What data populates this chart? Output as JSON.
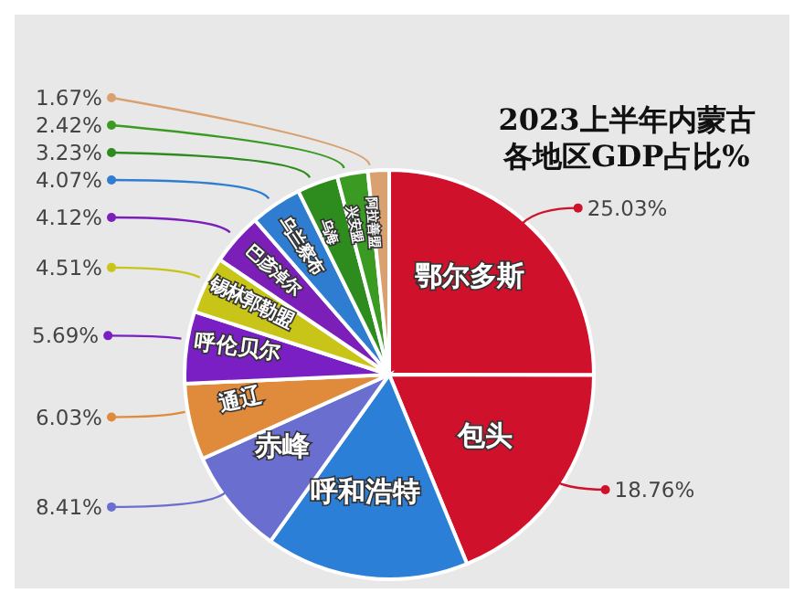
{
  "chart_data": {
    "type": "pie",
    "title": "2023上半年内蒙古各地区GDP占比%",
    "categories": [
      "鄂尔多斯",
      "包头",
      "呼和浩特",
      "赤峰",
      "通辽",
      "呼伦贝尔",
      "锡林郭勒盟",
      "巴彦淖尔",
      "乌兰察布",
      "乌海",
      "兴安盟",
      "阿拉善盟"
    ],
    "values": [
      25.03,
      18.76,
      16.06,
      8.41,
      6.03,
      5.69,
      4.51,
      4.12,
      4.07,
      3.23,
      2.42,
      1.67
    ],
    "value_labels": [
      "25.03%",
      "18.76%",
      null,
      "8.41%",
      "6.03%",
      "5.69%",
      "4.51%",
      "4.12%",
      "4.07%",
      "3.23%",
      "2.42%",
      "1.67%"
    ],
    "colors": [
      "#d0112b",
      "#d0112b",
      "#2b7fd6",
      "#6a6fcf",
      "#e08a3c",
      "#7a1fc4",
      "#c8c418",
      "#7b1fb8",
      "#2f7dd0",
      "#2e8b1e",
      "#3a9a22",
      "#d9a070"
    ]
  }
}
